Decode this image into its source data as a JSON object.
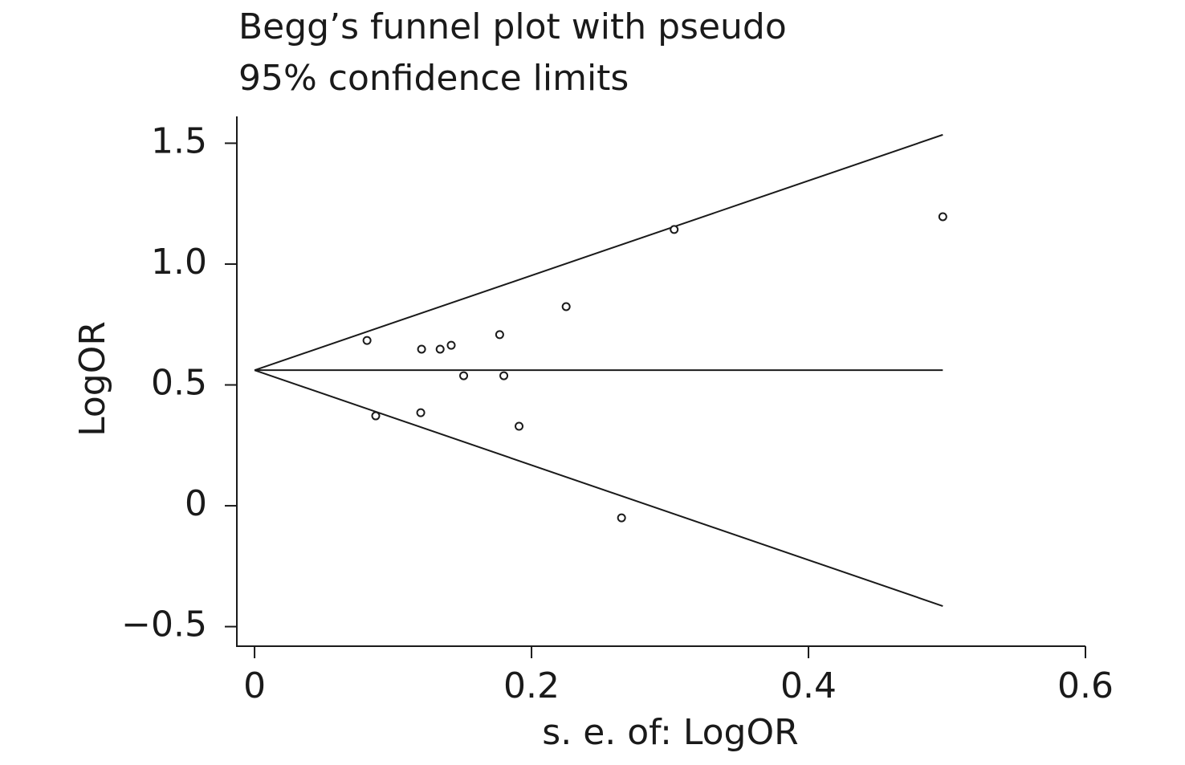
{
  "chart_data": {
    "type": "scatter",
    "title": [
      "Begg’s funnel plot with pseudo",
      "95% confidence limits"
    ],
    "xlabel": "s. e. of: LogOR",
    "ylabel": "LogOR",
    "xlim": [
      -0.0128,
      0.6
    ],
    "ylim": [
      -0.581,
      1.611
    ],
    "xticks": [
      0,
      0.2,
      0.4,
      0.6
    ],
    "yticks": [
      {
        "value": 1.5,
        "label": "1.5"
      },
      {
        "value": 1,
        "label": "1.0"
      },
      {
        "value": 0.5,
        "label": "0.5"
      },
      0,
      {
        "value": -0.5,
        "label": "−0.5"
      }
    ],
    "color": "#1a1a1a",
    "x": [
      0.0812,
      0.0875,
      0.1206,
      0.12,
      0.134,
      0.142,
      0.151,
      0.177,
      0.18,
      0.191,
      0.225,
      0.265,
      0.303,
      0.497
    ],
    "values": [
      0.684,
      0.372,
      0.648,
      0.385,
      0.648,
      0.664,
      0.538,
      0.708,
      0.538,
      0.329,
      0.824,
      -0.05,
      1.143,
      1.196
    ],
    "lines": [
      {
        "x": [
          0,
          0.497
        ],
        "values": [
          0.561,
          0.561
        ]
      },
      {
        "x": [
          0,
          0.497
        ],
        "values": [
          0.561,
          1.535
        ]
      },
      {
        "x": [
          0,
          0.497
        ],
        "values": [
          0.561,
          -0.415
        ]
      }
    ]
  }
}
